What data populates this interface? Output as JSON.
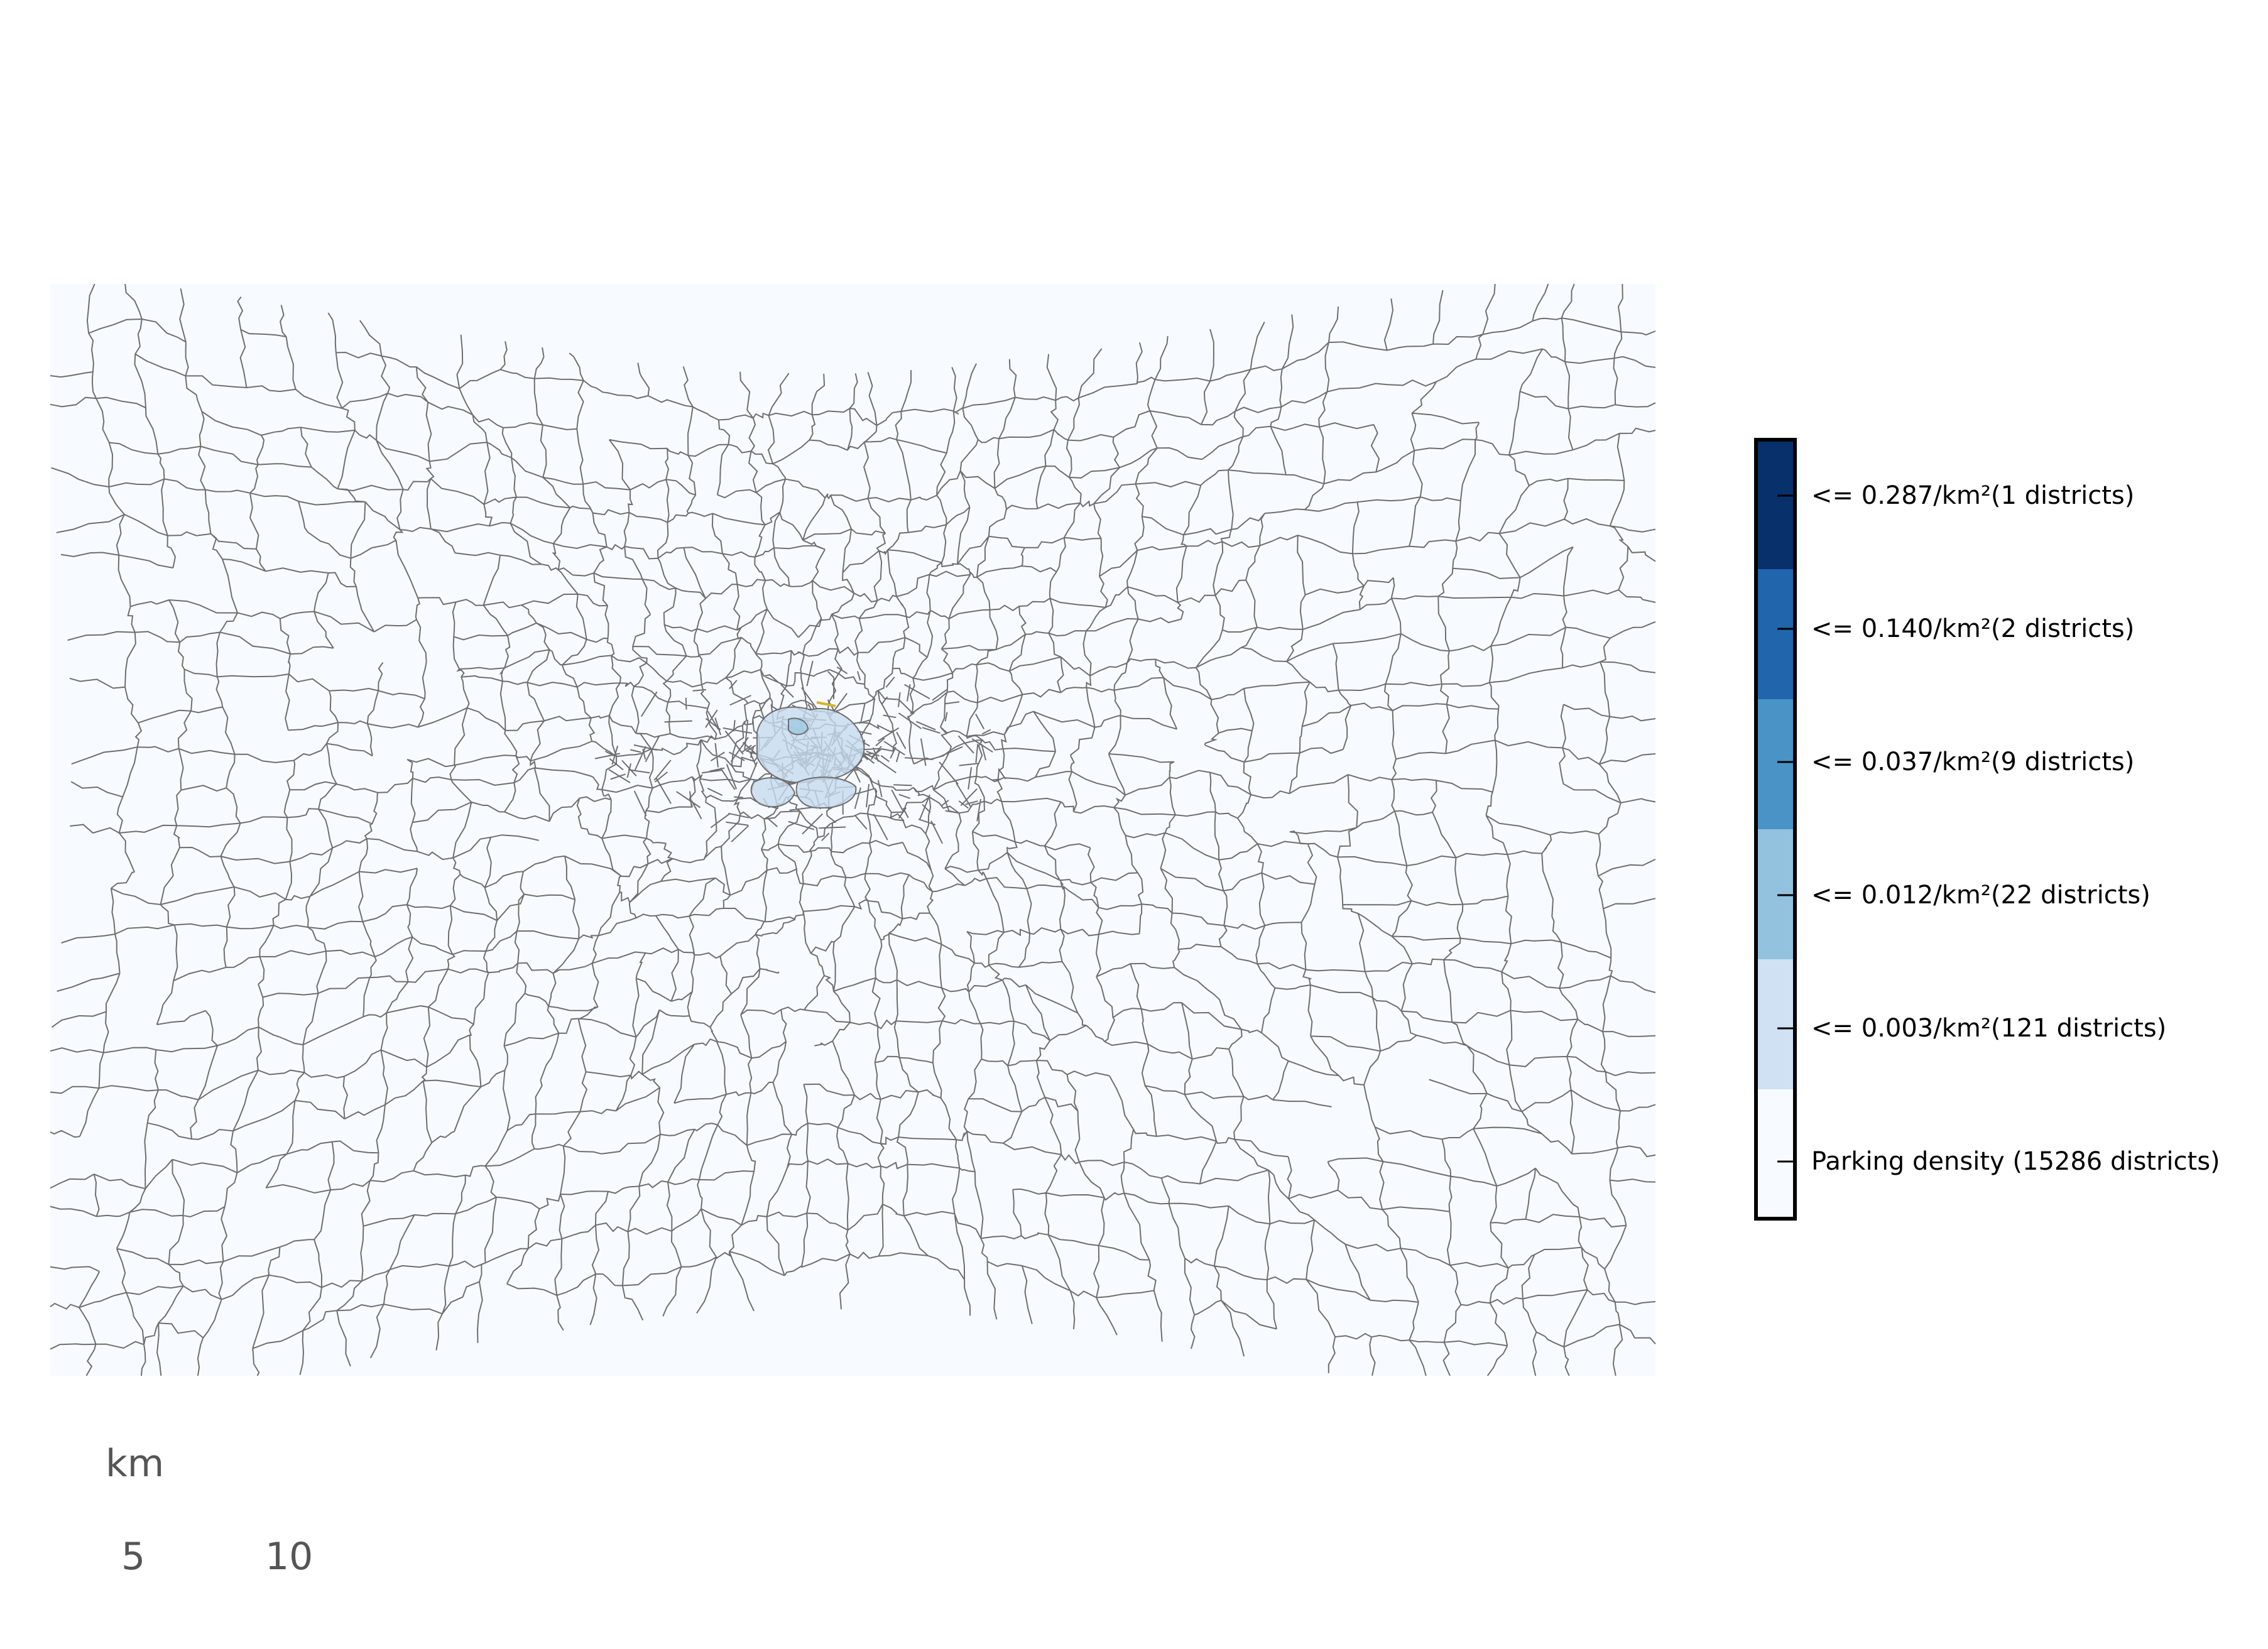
{
  "map": {
    "colors": {
      "background": "#f7fbff",
      "boundary": "#6e6e6e",
      "highlight": "#c6dbef",
      "highlight_dark": "#9ecae1",
      "accent": "#d4b531"
    }
  },
  "legend": {
    "bins": [
      {
        "label": "<= 0.287/km²(1 districts)",
        "color": "#08306b"
      },
      {
        "label": "<= 0.140/km²(2 districts)",
        "color": "#2166ac"
      },
      {
        "label": "<= 0.037/km²(9 districts)",
        "color": "#4a93c6"
      },
      {
        "label": "<= 0.012/km²(22 districts)",
        "color": "#93c2df"
      },
      {
        "label": "<= 0.003/km²(121 districts)",
        "color": "#cfe1f2"
      },
      {
        "label": "Parking density (15286 districts)",
        "color": "#f7fbff"
      }
    ]
  },
  "scale_bar": {
    "unit": "km",
    "ticks": [
      "5",
      "10"
    ]
  }
}
